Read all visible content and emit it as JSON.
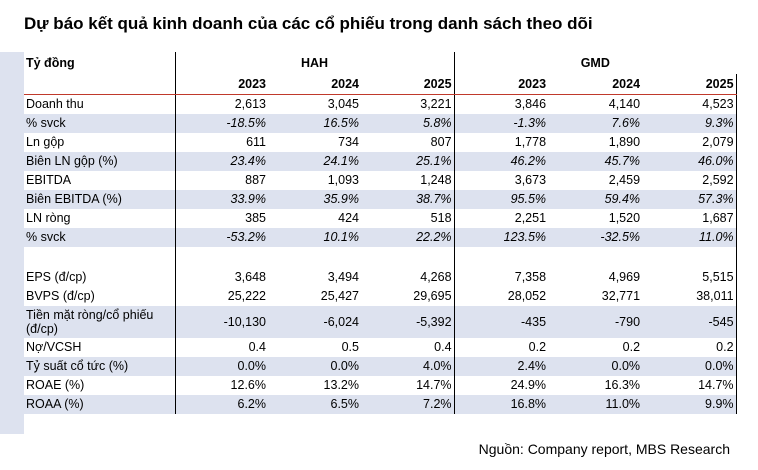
{
  "title": "Dự báo kết quả kinh doanh của các cổ phiếu trong danh sách theo dõi",
  "unit_label": "Tỷ đồng",
  "groups": [
    "HAH",
    "GMD"
  ],
  "years": [
    "2023",
    "2024",
    "2025",
    "2023",
    "2024",
    "2025"
  ],
  "rows": [
    {
      "label": "Doanh thu",
      "values": [
        "2,613",
        "3,045",
        "3,221",
        "3,846",
        "4,140",
        "4,523"
      ]
    },
    {
      "label": "% svck",
      "values": [
        "-18.5%",
        "16.5%",
        "5.8%",
        "-1.3%",
        "7.6%",
        "9.3%"
      ]
    },
    {
      "label": "Ln gộp",
      "values": [
        "611",
        "734",
        "807",
        "1,778",
        "1,890",
        "2,079"
      ]
    },
    {
      "label": "Biên LN gộp (%)",
      "values": [
        "23.4%",
        "24.1%",
        "25.1%",
        "46.2%",
        "45.7%",
        "46.0%"
      ]
    },
    {
      "label": "EBITDA",
      "values": [
        "887",
        "1,093",
        "1,248",
        "3,673",
        "2,459",
        "2,592"
      ]
    },
    {
      "label": "Biên EBITDA (%)",
      "values": [
        "33.9%",
        "35.9%",
        "38.7%",
        "95.5%",
        "59.4%",
        "57.3%"
      ]
    },
    {
      "label": "LN ròng",
      "values": [
        "385",
        "424",
        "518",
        "2,251",
        "1,520",
        "1,687"
      ]
    },
    {
      "label": "% svck",
      "values": [
        "-53.2%",
        "10.1%",
        "22.2%",
        "123.5%",
        "-32.5%",
        "11.0%"
      ]
    },
    {
      "label": "EPS (đ/cp)",
      "values": [
        "3,648",
        "3,494",
        "4,268",
        "7,358",
        "4,969",
        "5,515"
      ]
    },
    {
      "label": "BVPS (đ/cp)",
      "values": [
        "25,222",
        "25,427",
        "29,695",
        "28,052",
        "32,771",
        "38,011"
      ]
    },
    {
      "label_line1": "Tiền mặt ròng/cổ phiếu",
      "label_line2": "(đ/cp)",
      "values": [
        "-10,130",
        "-6,024",
        "-5,392",
        "-435",
        "-790",
        "-545"
      ]
    },
    {
      "label": "Nợ/VCSH",
      "values": [
        "0.4",
        "0.5",
        "0.4",
        "0.2",
        "0.2",
        "0.2"
      ]
    },
    {
      "label": "Tỷ suất cổ tức (%)",
      "values": [
        "0.0%",
        "0.0%",
        "4.0%",
        "2.4%",
        "0.0%",
        "0.0%"
      ]
    },
    {
      "label": "ROAE (%)",
      "values": [
        "12.6%",
        "13.2%",
        "14.7%",
        "24.9%",
        "16.3%",
        "14.7%"
      ]
    },
    {
      "label": "ROAA (%)",
      "values": [
        "6.2%",
        "6.5%",
        "7.2%",
        "16.8%",
        "11.0%",
        "9.9%"
      ]
    }
  ],
  "source": "Nguồn: Company report, MBS Research"
}
